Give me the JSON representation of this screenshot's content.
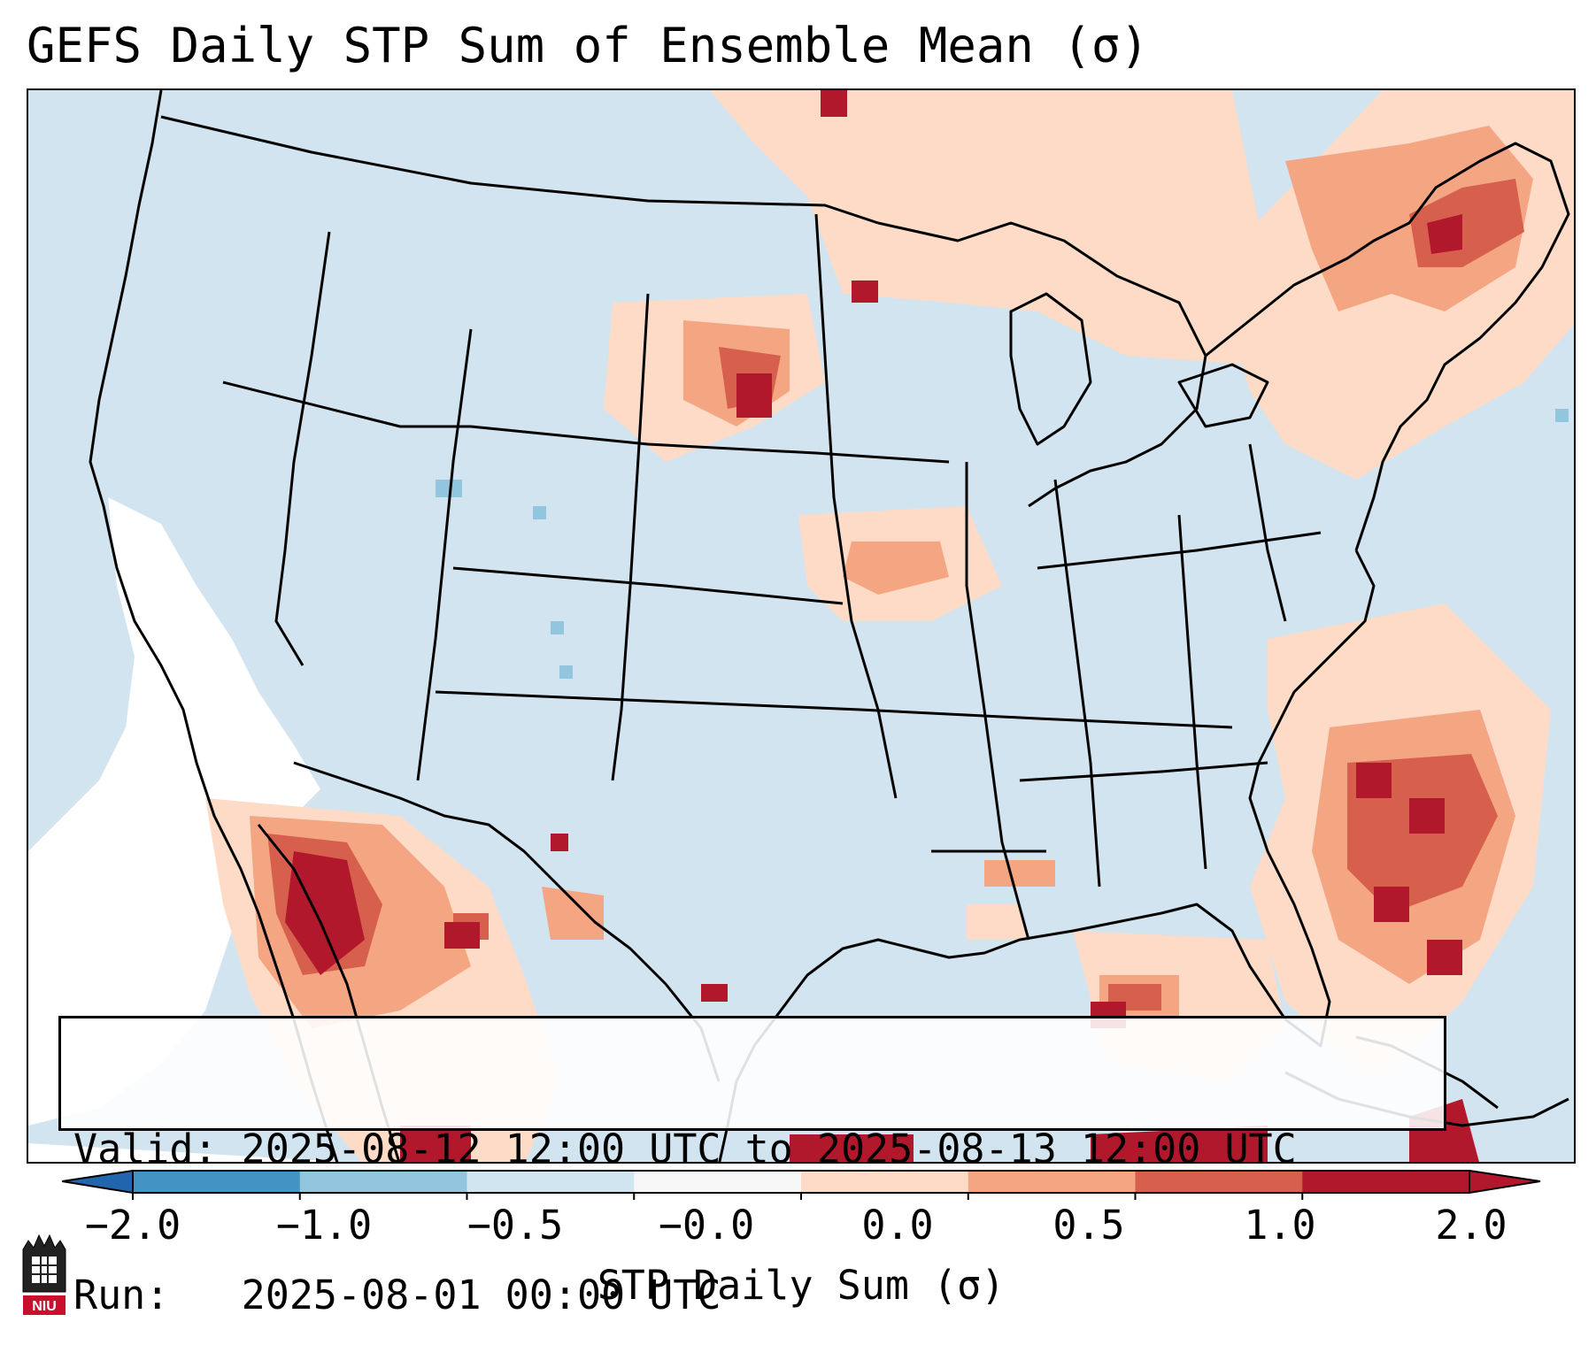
{
  "title": "GEFS Daily STP Sum of Ensemble Mean (σ)",
  "info": {
    "valid_label": "Valid:",
    "valid_value": "2025-08-12 12:00 UTC to 2025-08-13 12:00 UTC",
    "run_label": "Run:",
    "run_value": "2025-08-01 00:00 UTC"
  },
  "colorbar": {
    "title": "STP Daily Sum (σ)",
    "ticks": [
      "−2.0",
      "−1.0",
      "−0.5",
      "−0.0",
      "0.0",
      "0.5",
      "1.0",
      "2.0"
    ],
    "colors": [
      "#4393c3",
      "#92c5de",
      "#d1e5f0",
      "#f7f7f7",
      "#fddbc7",
      "#f4a582",
      "#d6604d",
      "#b2182b"
    ],
    "extend": "both"
  },
  "logo": {
    "text": "NIU"
  },
  "map": {
    "region": "Continental United States",
    "background_color": "#d2e4f0",
    "land_outline_color": "#000000"
  }
}
